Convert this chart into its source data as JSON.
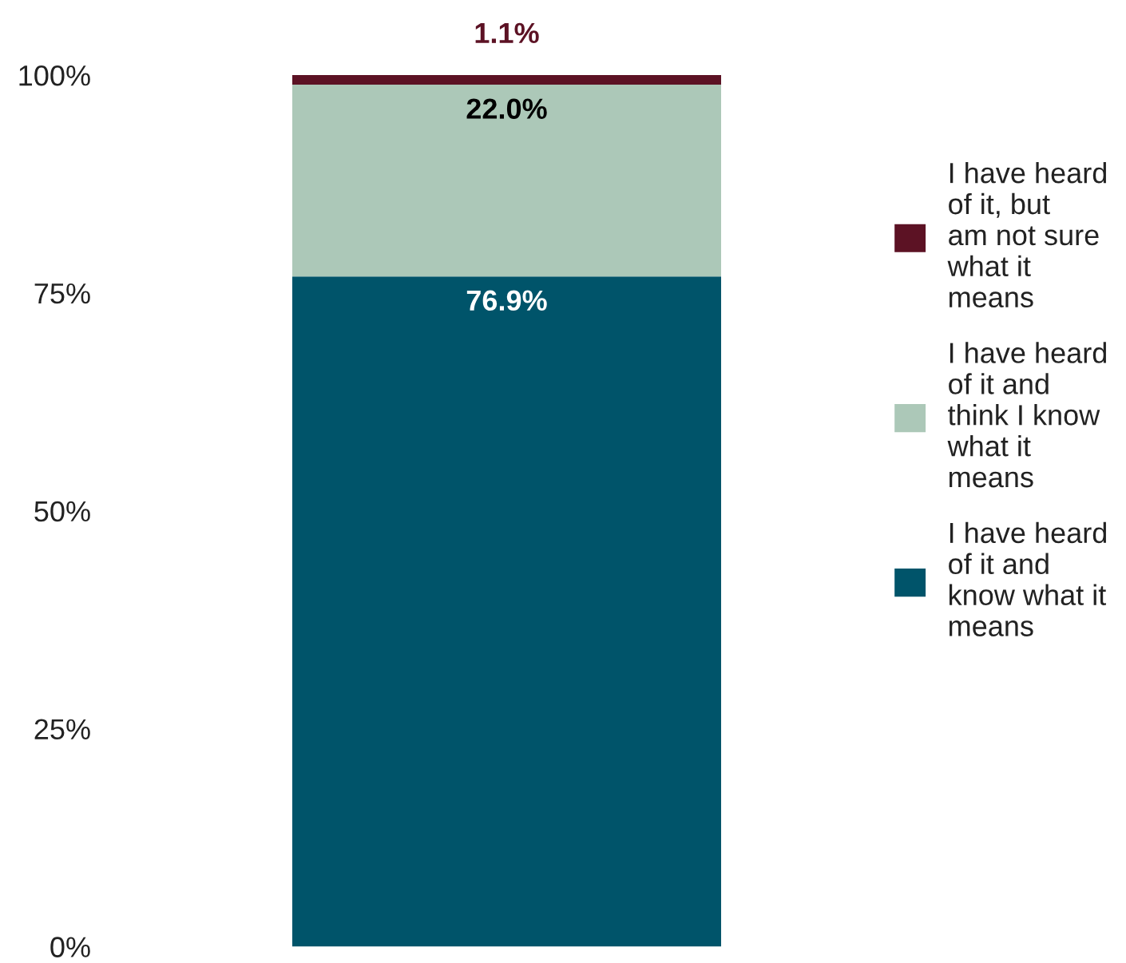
{
  "chart_data": {
    "type": "bar",
    "stacked": true,
    "categories": [
      null
    ],
    "series": [
      {
        "name": "I have heard of it and know what it means",
        "color": "#00546a",
        "values": [
          76.9
        ],
        "value_labels": [
          "76.9%"
        ]
      },
      {
        "name": "I have heard of it and think I know what it means",
        "color": "#acc8b8",
        "values": [
          22.0
        ],
        "value_labels": [
          "22.0%"
        ]
      },
      {
        "name": "I have heard of it, but am not sure what it means",
        "color": "#5c1224",
        "values": [
          1.1
        ],
        "value_labels": [
          "1.1%"
        ]
      }
    ],
    "ylim": [
      0,
      100
    ],
    "yticks": [
      {
        "value": 0,
        "label": "0%"
      },
      {
        "value": 25,
        "label": "25%"
      },
      {
        "value": 50,
        "label": "50%"
      },
      {
        "value": 75,
        "label": "75%"
      },
      {
        "value": 100,
        "label": "100%"
      }
    ],
    "legend": "right",
    "grid": false
  }
}
